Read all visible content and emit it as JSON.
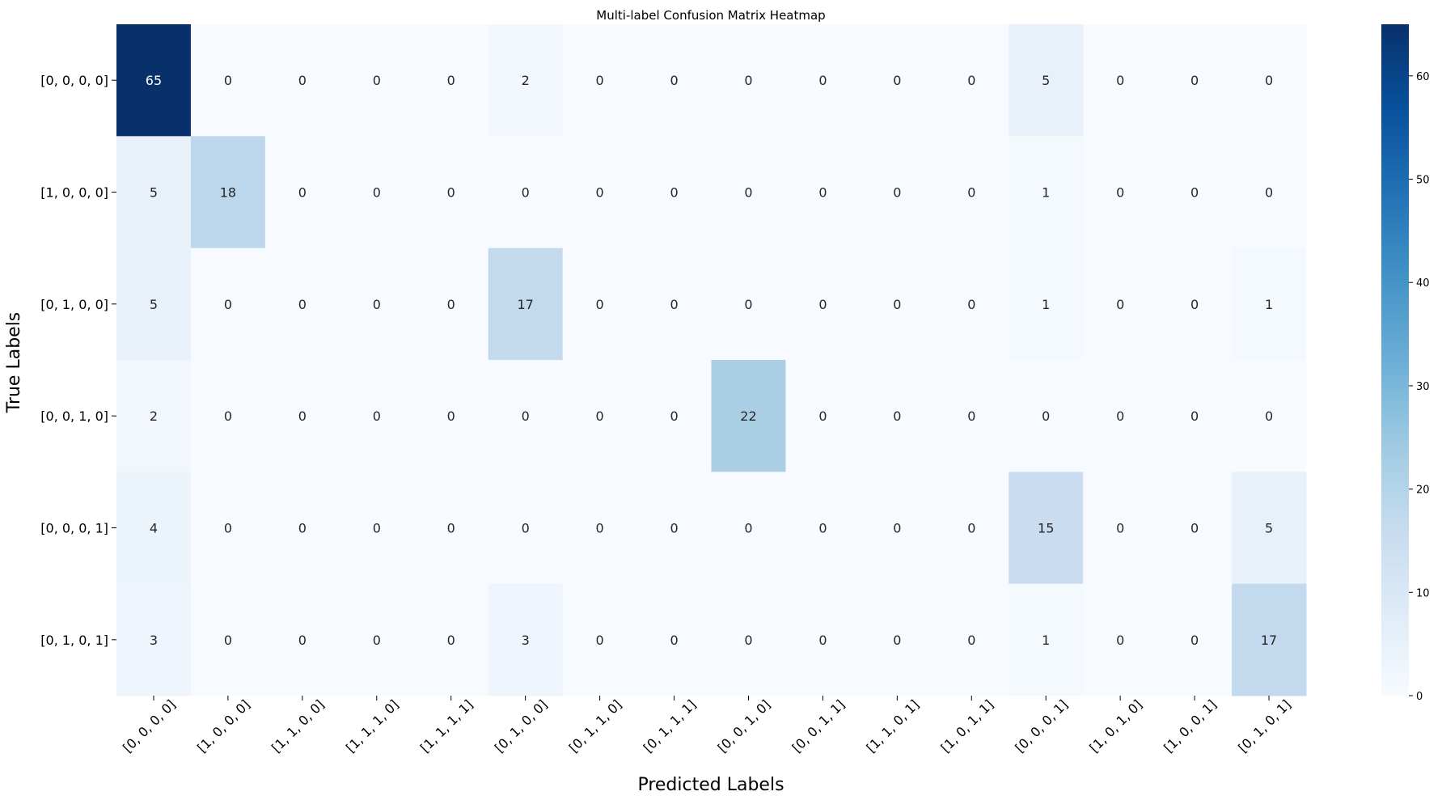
{
  "chart_data": {
    "type": "heatmap",
    "title": "Multi-label Confusion Matrix Heatmap",
    "xlabel": "Predicted Labels",
    "ylabel": "True Labels",
    "x_categories": [
      "[0, 0, 0, 0]",
      "[1, 0, 0, 0]",
      "[1, 1, 0, 0]",
      "[1, 1, 1, 0]",
      "[1, 1, 1, 1]",
      "[0, 1, 0, 0]",
      "[0, 1, 1, 0]",
      "[0, 1, 1, 1]",
      "[0, 0, 1, 0]",
      "[0, 0, 1, 1]",
      "[1, 1, 0, 1]",
      "[1, 0, 1, 1]",
      "[0, 0, 0, 1]",
      "[1, 0, 1, 0]",
      "[1, 0, 0, 1]",
      "[0, 1, 0, 1]"
    ],
    "y_categories": [
      "[0, 0, 0, 0]",
      "[1, 0, 0, 0]",
      "[0, 1, 0, 0]",
      "[0, 0, 1, 0]",
      "[0, 0, 0, 1]",
      "[0, 1, 0, 1]"
    ],
    "values": [
      [
        65,
        0,
        0,
        0,
        0,
        2,
        0,
        0,
        0,
        0,
        0,
        0,
        5,
        0,
        0,
        0
      ],
      [
        5,
        18,
        0,
        0,
        0,
        0,
        0,
        0,
        0,
        0,
        0,
        0,
        1,
        0,
        0,
        0
      ],
      [
        5,
        0,
        0,
        0,
        0,
        17,
        0,
        0,
        0,
        0,
        0,
        0,
        1,
        0,
        0,
        1
      ],
      [
        2,
        0,
        0,
        0,
        0,
        0,
        0,
        0,
        22,
        0,
        0,
        0,
        0,
        0,
        0,
        0
      ],
      [
        4,
        0,
        0,
        0,
        0,
        0,
        0,
        0,
        0,
        0,
        0,
        0,
        15,
        0,
        0,
        5
      ],
      [
        3,
        0,
        0,
        0,
        0,
        3,
        0,
        0,
        0,
        0,
        0,
        0,
        1,
        0,
        0,
        17
      ]
    ],
    "vmin": 0,
    "vmax": 65,
    "colormap": "Blues",
    "colorbar_ticks": [
      0,
      10,
      20,
      30,
      40,
      50,
      60
    ],
    "grid": false
  }
}
